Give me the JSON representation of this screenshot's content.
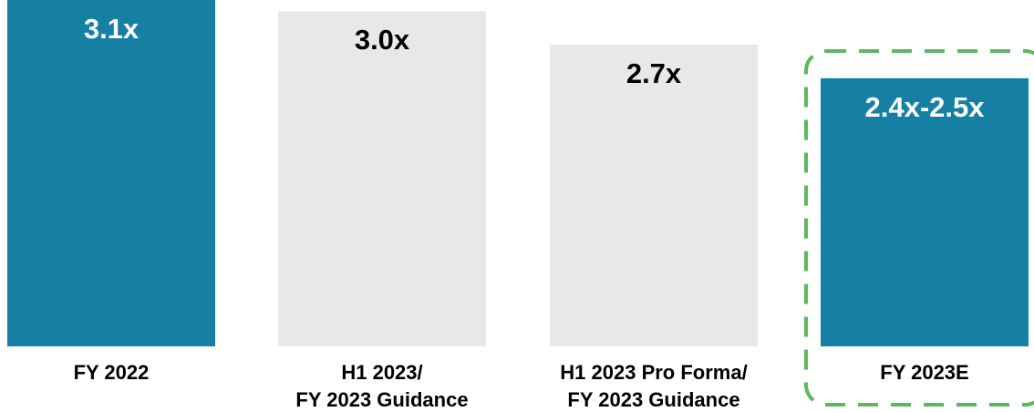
{
  "chart_data": {
    "type": "bar",
    "categories": [
      "FY 2022",
      "H1 2023/\nFY 2023 Guidance",
      "H1 2023 Pro Forma/\nFY 2023 Guidance",
      "FY 2023E"
    ],
    "values": [
      3.1,
      3.0,
      2.7,
      2.4
    ],
    "value_labels": [
      "3.1x",
      "3.0x",
      "2.7x",
      "2.4x-2.5x"
    ],
    "colors": [
      "#1580a4",
      "#e8e8e8",
      "#e8e8e8",
      "#1580a4"
    ],
    "value_label_colors": [
      "#ffffff",
      "#000000",
      "#000000",
      "#ffffff"
    ],
    "ylim": [
      0,
      3.1
    ]
  }
}
